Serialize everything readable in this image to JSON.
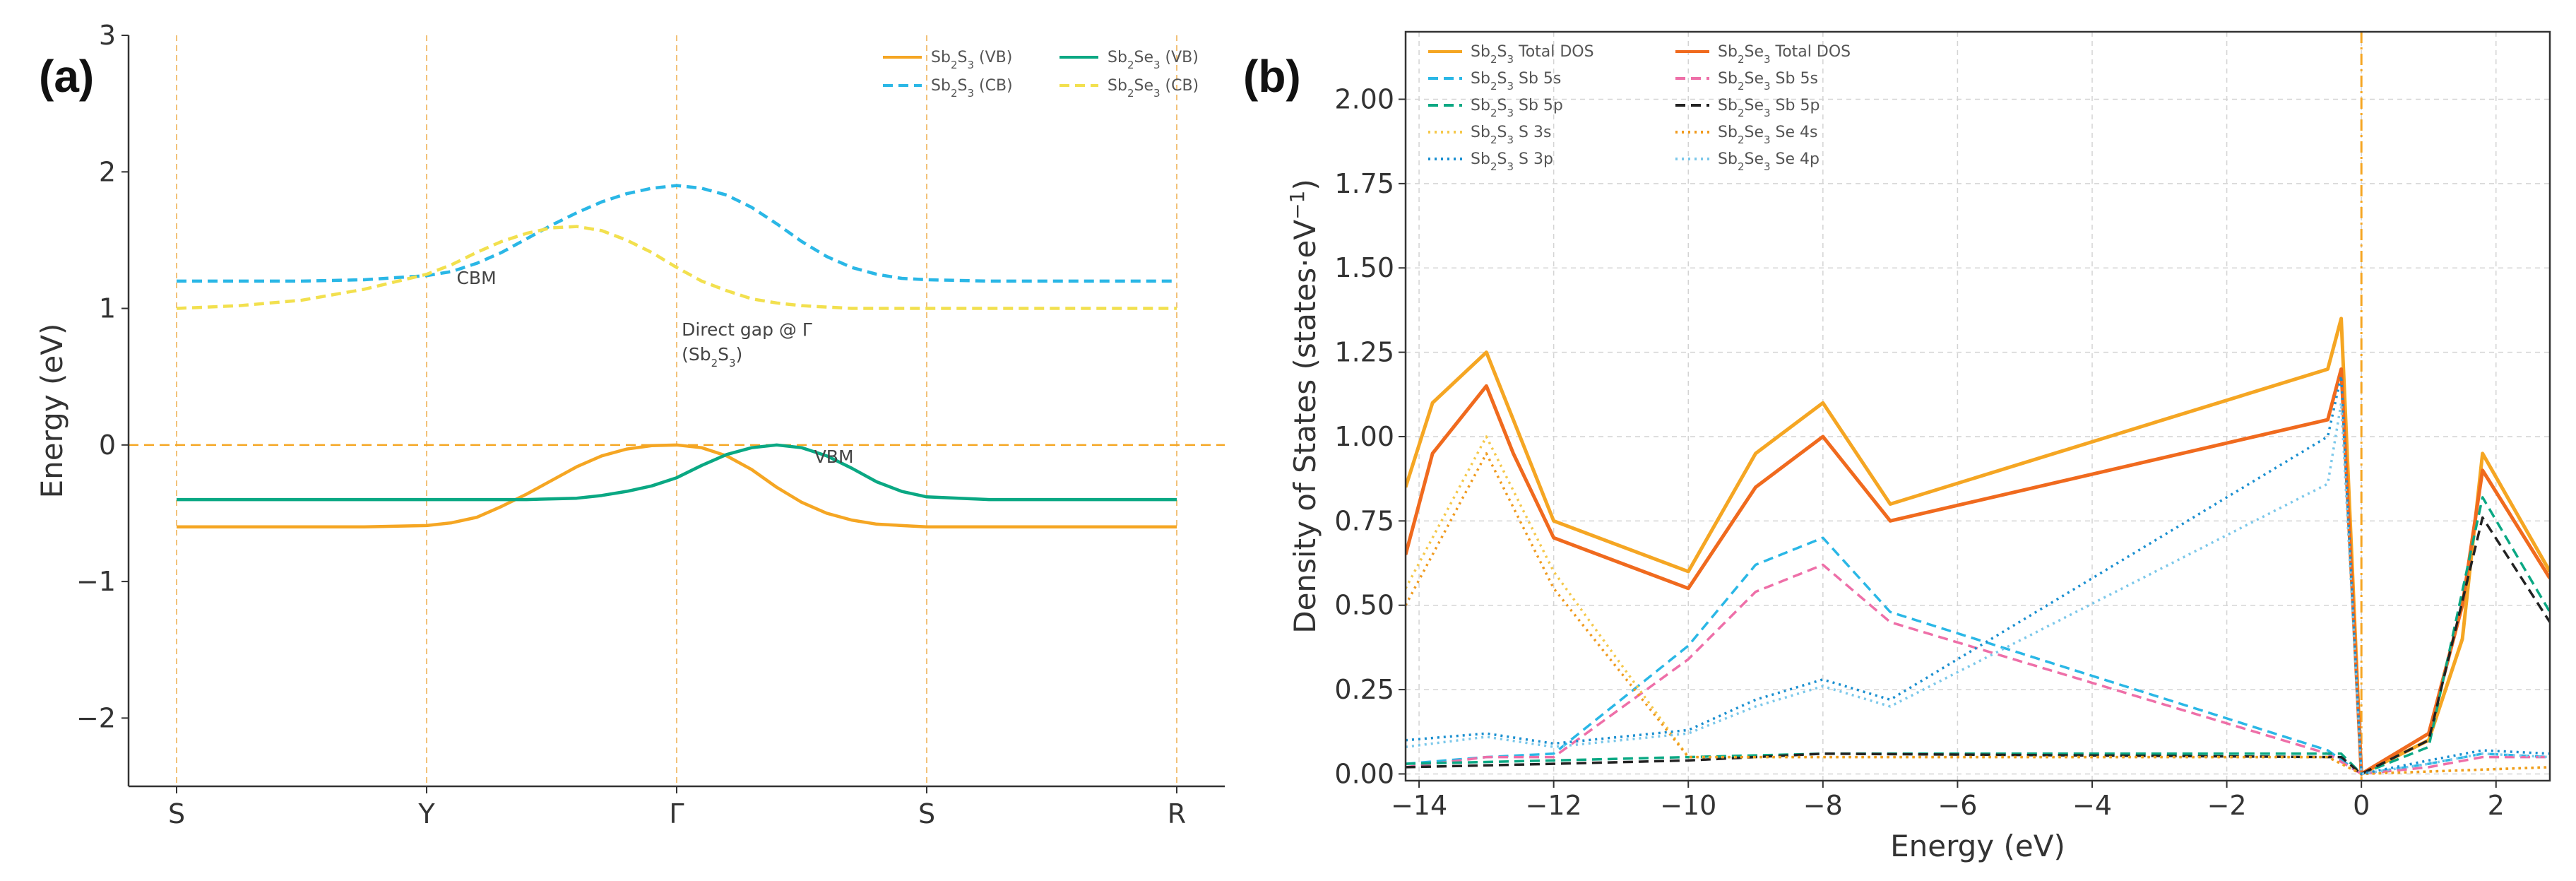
{
  "chart_data": [
    {
      "panel": "(a)",
      "type": "line",
      "title": "",
      "xlabel": "",
      "ylabel": "Energy (eV)",
      "ylim": [
        -2.5,
        3
      ],
      "yticks": [
        -2,
        -1,
        0,
        1,
        2,
        3
      ],
      "ytick_labels": [
        "−2",
        "−1",
        "0",
        "1",
        "2",
        "3"
      ],
      "k_points": [
        "S",
        "Y",
        "Γ",
        "S",
        "R"
      ],
      "k_positions": [
        0,
        1,
        2,
        3,
        4
      ],
      "fermi_level": 0,
      "grid": "vertical dashed at high-symmetry points",
      "legend_position": "top-right",
      "series": [
        {
          "name": "Sb2S3 (VB)",
          "label_main": "Sb",
          "label_sub1": "2",
          "label_mid": "S",
          "label_sub2": "3",
          "label_suffix": " (VB)",
          "color": "#f5a623",
          "dash": "solid",
          "x": [
            0,
            0.25,
            0.5,
            0.75,
            1,
            1.1,
            1.2,
            1.3,
            1.4,
            1.5,
            1.6,
            1.7,
            1.8,
            1.9,
            2,
            2.1,
            2.2,
            2.3,
            2.4,
            2.5,
            2.6,
            2.7,
            2.8,
            2.9,
            3,
            3.25,
            3.5,
            3.75,
            4
          ],
          "y": [
            -0.6,
            -0.6,
            -0.6,
            -0.6,
            -0.59,
            -0.57,
            -0.53,
            -0.45,
            -0.36,
            -0.26,
            -0.16,
            -0.08,
            -0.03,
            -0.005,
            0,
            -0.02,
            -0.08,
            -0.18,
            -0.31,
            -0.42,
            -0.5,
            -0.55,
            -0.58,
            -0.59,
            -0.6,
            -0.6,
            -0.6,
            -0.6,
            -0.6
          ]
        },
        {
          "name": "Sb2S3 (CB)",
          "label_main": "Sb",
          "label_sub1": "2",
          "label_mid": "S",
          "label_sub2": "3",
          "label_suffix": " (CB)",
          "color": "#2ab7e6",
          "dash": "dashed",
          "x": [
            0,
            0.25,
            0.5,
            0.75,
            1,
            1.1,
            1.2,
            1.3,
            1.4,
            1.5,
            1.6,
            1.7,
            1.8,
            1.9,
            2,
            2.1,
            2.2,
            2.3,
            2.4,
            2.5,
            2.6,
            2.7,
            2.8,
            2.9,
            3,
            3.25,
            3.5,
            3.75,
            4
          ],
          "y": [
            1.2,
            1.2,
            1.2,
            1.21,
            1.24,
            1.27,
            1.33,
            1.41,
            1.51,
            1.61,
            1.7,
            1.78,
            1.84,
            1.88,
            1.9,
            1.88,
            1.83,
            1.74,
            1.62,
            1.49,
            1.38,
            1.3,
            1.25,
            1.22,
            1.21,
            1.2,
            1.2,
            1.2,
            1.2
          ]
        },
        {
          "name": "Sb2Se3 (VB)",
          "label_main": "Sb",
          "label_sub1": "2",
          "label_mid": "Se",
          "label_sub2": "3",
          "label_suffix": " (VB)",
          "color": "#0aa883",
          "dash": "solid",
          "x": [
            0,
            0.25,
            0.5,
            0.75,
            1,
            1.2,
            1.4,
            1.6,
            1.7,
            1.8,
            1.9,
            2,
            2.1,
            2.2,
            2.3,
            2.4,
            2.5,
            2.6,
            2.7,
            2.8,
            2.9,
            3,
            3.25,
            3.5,
            3.75,
            4
          ],
          "y": [
            -0.4,
            -0.4,
            -0.4,
            -0.4,
            -0.4,
            -0.4,
            -0.4,
            -0.39,
            -0.37,
            -0.34,
            -0.3,
            -0.24,
            -0.15,
            -0.07,
            -0.02,
            0,
            -0.02,
            -0.08,
            -0.17,
            -0.27,
            -0.34,
            -0.38,
            -0.4,
            -0.4,
            -0.4,
            -0.4
          ]
        },
        {
          "name": "Sb2Se3 (CB)",
          "label_main": "Sb",
          "label_sub1": "2",
          "label_mid": "Se",
          "label_sub2": "3",
          "label_suffix": " (CB)",
          "color": "#f2e04e",
          "dash": "dashed",
          "x": [
            0,
            0.25,
            0.5,
            0.75,
            1,
            1.1,
            1.2,
            1.3,
            1.4,
            1.5,
            1.6,
            1.7,
            1.8,
            1.9,
            2,
            2.1,
            2.2,
            2.3,
            2.4,
            2.5,
            2.7,
            3,
            3.5,
            4
          ],
          "y": [
            1,
            1.02,
            1.06,
            1.14,
            1.25,
            1.32,
            1.41,
            1.49,
            1.55,
            1.59,
            1.6,
            1.57,
            1.5,
            1.41,
            1.3,
            1.2,
            1.13,
            1.07,
            1.04,
            1.02,
            1.0,
            1.0,
            1.0,
            1.0
          ]
        }
      ],
      "annotations": [
        {
          "text": "CBM",
          "x": 1.12,
          "y": 1.18
        },
        {
          "text": "Direct gap @ Γ",
          "x": 2.02,
          "y": 0.8
        },
        {
          "text": "(Sb",
          "sub": "2",
          "text2": "S",
          "sub2": "3",
          "text3": ")",
          "x": 2.02,
          "y": 0.62
        },
        {
          "text": "VBM",
          "x": 2.55,
          "y": -0.13
        }
      ]
    },
    {
      "panel": "(b)",
      "type": "line",
      "title": "",
      "xlabel": "Energy (eV)",
      "ylabel": "Density of States (states·eV",
      "ylabel_sup": "−1",
      "ylabel_close": ")",
      "xlim": [
        -14.2,
        2.8
      ],
      "ylim": [
        -0.02,
        2.2
      ],
      "xticks": [
        -14,
        -12,
        -10,
        -8,
        -6,
        -4,
        -2,
        0,
        2
      ],
      "xtick_labels": [
        "−14",
        "−12",
        "−10",
        "−8",
        "−6",
        "−4",
        "−2",
        "0",
        "2"
      ],
      "yticks": [
        0,
        0.25,
        0.5,
        0.75,
        1,
        1.25,
        1.5,
        1.75,
        2
      ],
      "ytick_labels": [
        "0.00",
        "0.25",
        "0.50",
        "0.75",
        "1.00",
        "1.25",
        "1.50",
        "1.75",
        "2.00"
      ],
      "fermi_level": 0,
      "grid": true,
      "legend_position": "top-left",
      "series": [
        {
          "name": "Sb2S3 Total DOS",
          "label_main": "Sb",
          "label_sub1": "2",
          "label_mid": "S",
          "label_sub2": "3",
          "label_suffix": " Total DOS",
          "color": "#f5a623",
          "dash": "solid",
          "x": [
            -14.2,
            -13.8,
            -13,
            -12.6,
            -12,
            -10,
            -9,
            -8,
            -7,
            -0.5,
            -0.3,
            0,
            1,
            1.5,
            1.8,
            2.8
          ],
          "y": [
            0.85,
            1.1,
            1.25,
            1.05,
            0.75,
            0.6,
            0.95,
            1.1,
            0.8,
            1.2,
            1.35,
            0,
            0.1,
            0.4,
            0.95,
            0.6
          ]
        },
        {
          "name": "Sb2Se3 Total DOS",
          "label_main": "Sb",
          "label_sub1": "2",
          "label_mid": "Se",
          "label_sub2": "3",
          "label_suffix": " Total DOS",
          "color": "#f06a1e",
          "dash": "solid",
          "x": [
            -14.2,
            -13.8,
            -13,
            -12.6,
            -12,
            -10,
            -9,
            -8,
            -7,
            -0.5,
            -0.3,
            0,
            1,
            1.5,
            1.8,
            2.8
          ],
          "y": [
            0.65,
            0.95,
            1.15,
            0.95,
            0.7,
            0.55,
            0.85,
            1.0,
            0.75,
            1.05,
            1.2,
            0,
            0.12,
            0.5,
            0.9,
            0.58
          ]
        },
        {
          "name": "Sb2S3 Sb 5s",
          "label_main": "Sb",
          "label_sub1": "2",
          "label_mid": "S",
          "label_sub2": "3",
          "label_suffix": " Sb 5s",
          "color": "#2ab7e6",
          "dash": "dashed",
          "x": [
            -14.2,
            -13,
            -12,
            -10,
            -9,
            -8,
            -7,
            -0.5,
            0,
            1,
            1.8,
            2.8
          ],
          "y": [
            0.03,
            0.05,
            0.06,
            0.38,
            0.62,
            0.7,
            0.48,
            0.07,
            0,
            0.03,
            0.06,
            0.05
          ]
        },
        {
          "name": "Sb2Se3 Sb 5s",
          "label_main": "Sb",
          "label_sub1": "2",
          "label_mid": "Se",
          "label_sub2": "3",
          "label_suffix": " Sb 5s",
          "color": "#ee6fa8",
          "dash": "dashed",
          "x": [
            -14.2,
            -13,
            -12,
            -10,
            -9,
            -8,
            -7,
            -0.5,
            0,
            1,
            1.8,
            2.8
          ],
          "y": [
            0.02,
            0.05,
            0.05,
            0.34,
            0.54,
            0.62,
            0.45,
            0.06,
            0,
            0.02,
            0.05,
            0.05
          ]
        },
        {
          "name": "Sb2S3 Sb 5p",
          "label_main": "Sb",
          "label_sub1": "2",
          "label_mid": "S",
          "label_sub2": "3",
          "label_suffix": " Sb 5p",
          "color": "#0aa883",
          "dash": "dashed",
          "x": [
            -14.2,
            -12,
            -10,
            -8,
            -0.5,
            -0.3,
            0,
            1,
            1.8,
            2.8
          ],
          "y": [
            0.03,
            0.04,
            0.05,
            0.06,
            0.06,
            0.06,
            0,
            0.08,
            0.82,
            0.48
          ]
        },
        {
          "name": "Sb2Se3 Sb 5p",
          "label_main": "Sb",
          "label_sub1": "2",
          "label_mid": "Se",
          "label_sub2": "3",
          "label_suffix": " Sb 5p",
          "color": "#222222",
          "dash": "dashed",
          "x": [
            -14.2,
            -12,
            -10,
            -8,
            -0.5,
            -0.3,
            0,
            1,
            1.8,
            2.8
          ],
          "y": [
            0.02,
            0.03,
            0.04,
            0.06,
            0.05,
            0.05,
            0,
            0.1,
            0.76,
            0.45
          ]
        },
        {
          "name": "Sb2S3 S 3s",
          "label_main": "Sb",
          "label_sub1": "2",
          "label_mid": "S",
          "label_sub2": "3",
          "label_suffix": " S 3s",
          "color": "#f5c84a",
          "dash": "dotted",
          "x": [
            -14.2,
            -13,
            -12,
            -10,
            -0.5,
            0,
            2.8
          ],
          "y": [
            0.55,
            1.0,
            0.6,
            0.05,
            0.05,
            0,
            0.02
          ]
        },
        {
          "name": "Sb2Se3 Se 4s",
          "label_main": "Sb",
          "label_sub1": "2",
          "label_mid": "Se",
          "label_sub2": "3",
          "label_suffix": " Se 4s",
          "color": "#f09a1e",
          "dash": "dotted",
          "x": [
            -14.2,
            -13,
            -12,
            -10,
            -0.5,
            0,
            2.8
          ],
          "y": [
            0.5,
            0.95,
            0.55,
            0.05,
            0.05,
            0,
            0.02
          ]
        },
        {
          "name": "Sb2S3 S 3p",
          "label_main": "Sb",
          "label_sub1": "2",
          "label_mid": "S",
          "label_sub2": "3",
          "label_suffix": " S 3p",
          "color": "#1a8fd0",
          "dash": "dotted",
          "x": [
            -14.2,
            -13,
            -12,
            -10,
            -9,
            -8,
            -7,
            -0.5,
            -0.3,
            0,
            1,
            1.8,
            2.8
          ],
          "y": [
            0.1,
            0.12,
            0.09,
            0.13,
            0.22,
            0.28,
            0.22,
            1.0,
            1.18,
            0,
            0.04,
            0.07,
            0.06
          ]
        },
        {
          "name": "Sb2Se3 Se 4p",
          "label_main": "Sb",
          "label_sub1": "2",
          "label_mid": "Se",
          "label_sub2": "3",
          "label_suffix": " Se 4p",
          "color": "#7cc8ea",
          "dash": "dotted",
          "x": [
            -14.2,
            -13,
            -12,
            -10,
            -9,
            -8,
            -7,
            -0.5,
            -0.3,
            0,
            1,
            1.8,
            2.8
          ],
          "y": [
            0.08,
            0.11,
            0.08,
            0.12,
            0.2,
            0.26,
            0.2,
            0.86,
            1.1,
            0,
            0.03,
            0.06,
            0.05
          ]
        }
      ]
    }
  ]
}
